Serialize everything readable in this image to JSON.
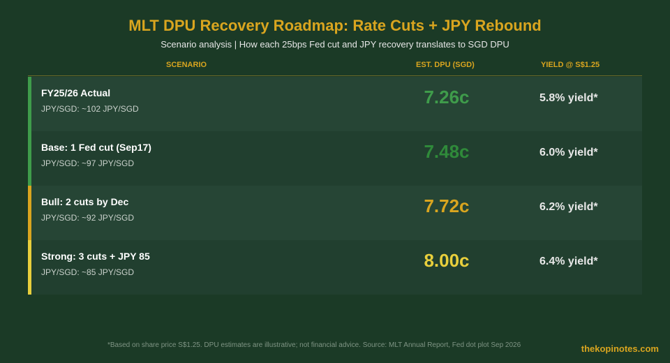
{
  "chart_data": {
    "type": "table",
    "title": "MLT DPU Recovery Roadmap: Rate Cuts + JPY Rebound",
    "subtitle": "Scenario analysis | How each 25bps Fed cut and JPY recovery translates to SGD DPU",
    "columns": [
      "SCENARIO",
      "EST. DPU (SGD)",
      "YIELD @ S$1.25"
    ],
    "rows": [
      {
        "scenario": "FY25/26 Actual",
        "fx": "JPY/SGD: ~102 JPY/SGD",
        "dpu": "7.26c",
        "dpu_value": 7.26,
        "yield": "5.8% yield*",
        "accent_color": "#3f9c4b",
        "dpu_color": "#3f9c4b"
      },
      {
        "scenario": "Base: 1 Fed cut (Sep17)",
        "fx": "JPY/SGD: ~97 JPY/SGD",
        "dpu": "7.48c",
        "dpu_value": 7.48,
        "yield": "6.0% yield*",
        "accent_color": "#3f9c4b",
        "dpu_color": "#2f8a3a"
      },
      {
        "scenario": "Bull: 2 cuts by Dec",
        "fx": "JPY/SGD: ~92 JPY/SGD",
        "dpu": "7.72c",
        "dpu_value": 7.72,
        "yield": "6.2% yield*",
        "accent_color": "#d9a51f",
        "dpu_color": "#d9a51f"
      },
      {
        "scenario": "Strong: 3 cuts + JPY 85",
        "fx": "JPY/SGD: ~85 JPY/SGD",
        "dpu": "8.00c",
        "dpu_value": 8.0,
        "yield": "6.4% yield*",
        "accent_color": "#e8cf3c",
        "dpu_color": "#e8cf3c"
      }
    ],
    "footnote": "*Based on share price S$1.25. DPU estimates are illustrative; not financial advice. Source: MLT Annual Report, Fed dot plot Sep 2026"
  },
  "brand": "thekopinotes.com"
}
